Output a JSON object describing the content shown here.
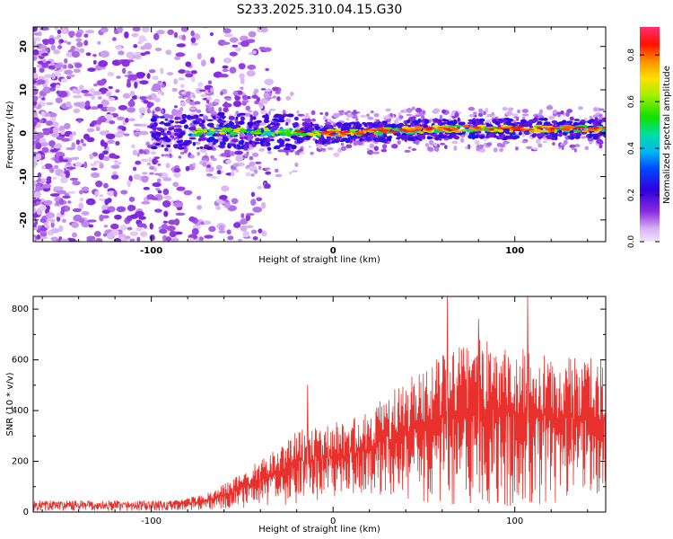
{
  "figure_title": "S233.2025.310.04.15.G30",
  "chart_data": [
    {
      "type": "heatmap",
      "title": "S233.2025.310.04.15.G30",
      "xlabel": "Height of straight line (km)",
      "ylabel": "Frequency (Hz)",
      "xlim": [
        -165,
        150
      ],
      "ylim": [
        -25,
        24.5
      ],
      "xticks": [
        -100,
        0,
        100
      ],
      "yticks": [
        -20,
        -10,
        0,
        10,
        20
      ],
      "ridge": {
        "description": "narrow high-amplitude band near 0 Hz for heights above about -90 km; diffuse low-amplitude scatter below",
        "points": [
          {
            "x": -90,
            "y": 0.0
          },
          {
            "x": -60,
            "y": 0.5
          },
          {
            "x": -30,
            "y": 0.2
          },
          {
            "x": 0,
            "y": 0.0
          },
          {
            "x": 30,
            "y": 0.5
          },
          {
            "x": 60,
            "y": 1.0
          },
          {
            "x": 90,
            "y": 1.0
          },
          {
            "x": 120,
            "y": 1.0
          },
          {
            "x": 150,
            "y": 1.0
          }
        ]
      },
      "colorbar": {
        "label": "Normalized spectral amplitude",
        "range": [
          0.0,
          0.92
        ],
        "ticks": [
          "0.0",
          "0.2",
          "0.4",
          "0.6",
          "0.8"
        ],
        "tick_values": [
          0.0,
          0.2,
          0.4,
          0.6,
          0.8
        ]
      }
    },
    {
      "type": "line",
      "xlabel": "Height of straight line (km)",
      "ylabel": "SNR (10 * v/v)",
      "xlim": [
        -165,
        150
      ],
      "ylim": [
        0,
        850
      ],
      "xticks": [
        -100,
        0,
        100
      ],
      "yticks": [
        0,
        200,
        400,
        600,
        800
      ],
      "series": [
        {
          "name": "SNR",
          "color": "#e8312c",
          "envelope": [
            {
              "x": -165,
              "low": 5,
              "high": 45
            },
            {
              "x": -90,
              "low": 5,
              "high": 45
            },
            {
              "x": -70,
              "low": 10,
              "high": 70
            },
            {
              "x": -55,
              "low": 15,
              "high": 130
            },
            {
              "x": -40,
              "low": 20,
              "high": 210
            },
            {
              "x": -20,
              "low": 30,
              "high": 320
            },
            {
              "x": 0,
              "low": 60,
              "high": 350
            },
            {
              "x": 20,
              "low": 70,
              "high": 400
            },
            {
              "x": 40,
              "low": 50,
              "high": 520
            },
            {
              "x": 60,
              "low": 30,
              "high": 640
            },
            {
              "x": 80,
              "low": 30,
              "high": 680
            },
            {
              "x": 100,
              "low": 20,
              "high": 650
            },
            {
              "x": 120,
              "low": 30,
              "high": 620
            },
            {
              "x": 150,
              "low": 80,
              "high": 600
            }
          ],
          "spikes": [
            {
              "x": -14,
              "y": 500
            },
            {
              "x": 63,
              "y": 850
            },
            {
              "x": 107,
              "y": 850
            },
            {
              "x": 80,
              "y": 760
            }
          ]
        }
      ]
    }
  ]
}
